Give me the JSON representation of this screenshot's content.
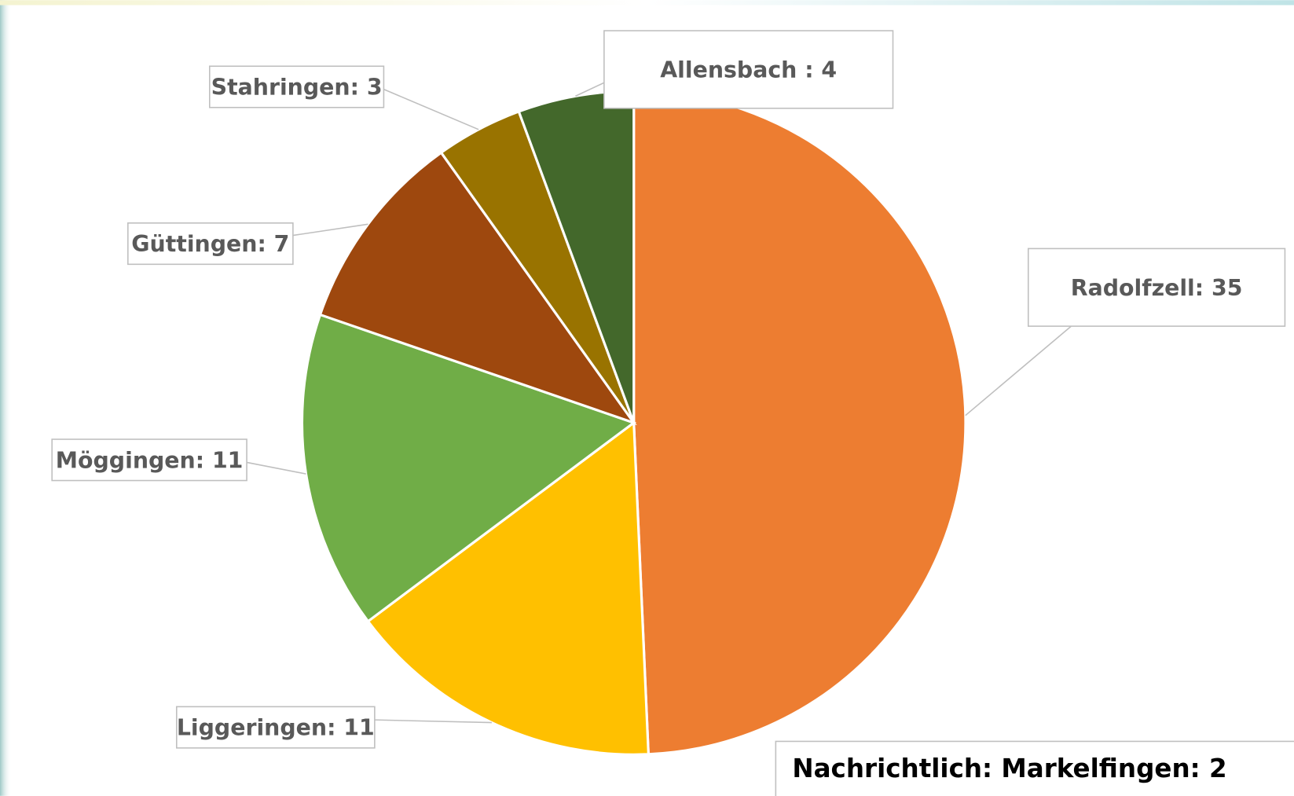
{
  "chart_data": {
    "type": "pie",
    "categories": [
      "Radolfzell",
      "Liggeringen",
      "Möggingen",
      "Güttingen",
      "Stahringen",
      "Allensbach"
    ],
    "values": [
      35,
      11,
      11,
      7,
      3,
      4
    ],
    "value_labels": [
      "Radolfzell: 35",
      "Liggeringen: 11",
      "Möggingen: 11",
      "Güttingen: 7",
      "Stahringen: 3",
      "Allensbach : 4"
    ],
    "colors": [
      "#ED7D31",
      "#FFC000",
      "#70AD47",
      "#9E480E",
      "#997300",
      "#43682B"
    ],
    "annotation": "Nachrichtlich: Markelfingen: 2"
  }
}
